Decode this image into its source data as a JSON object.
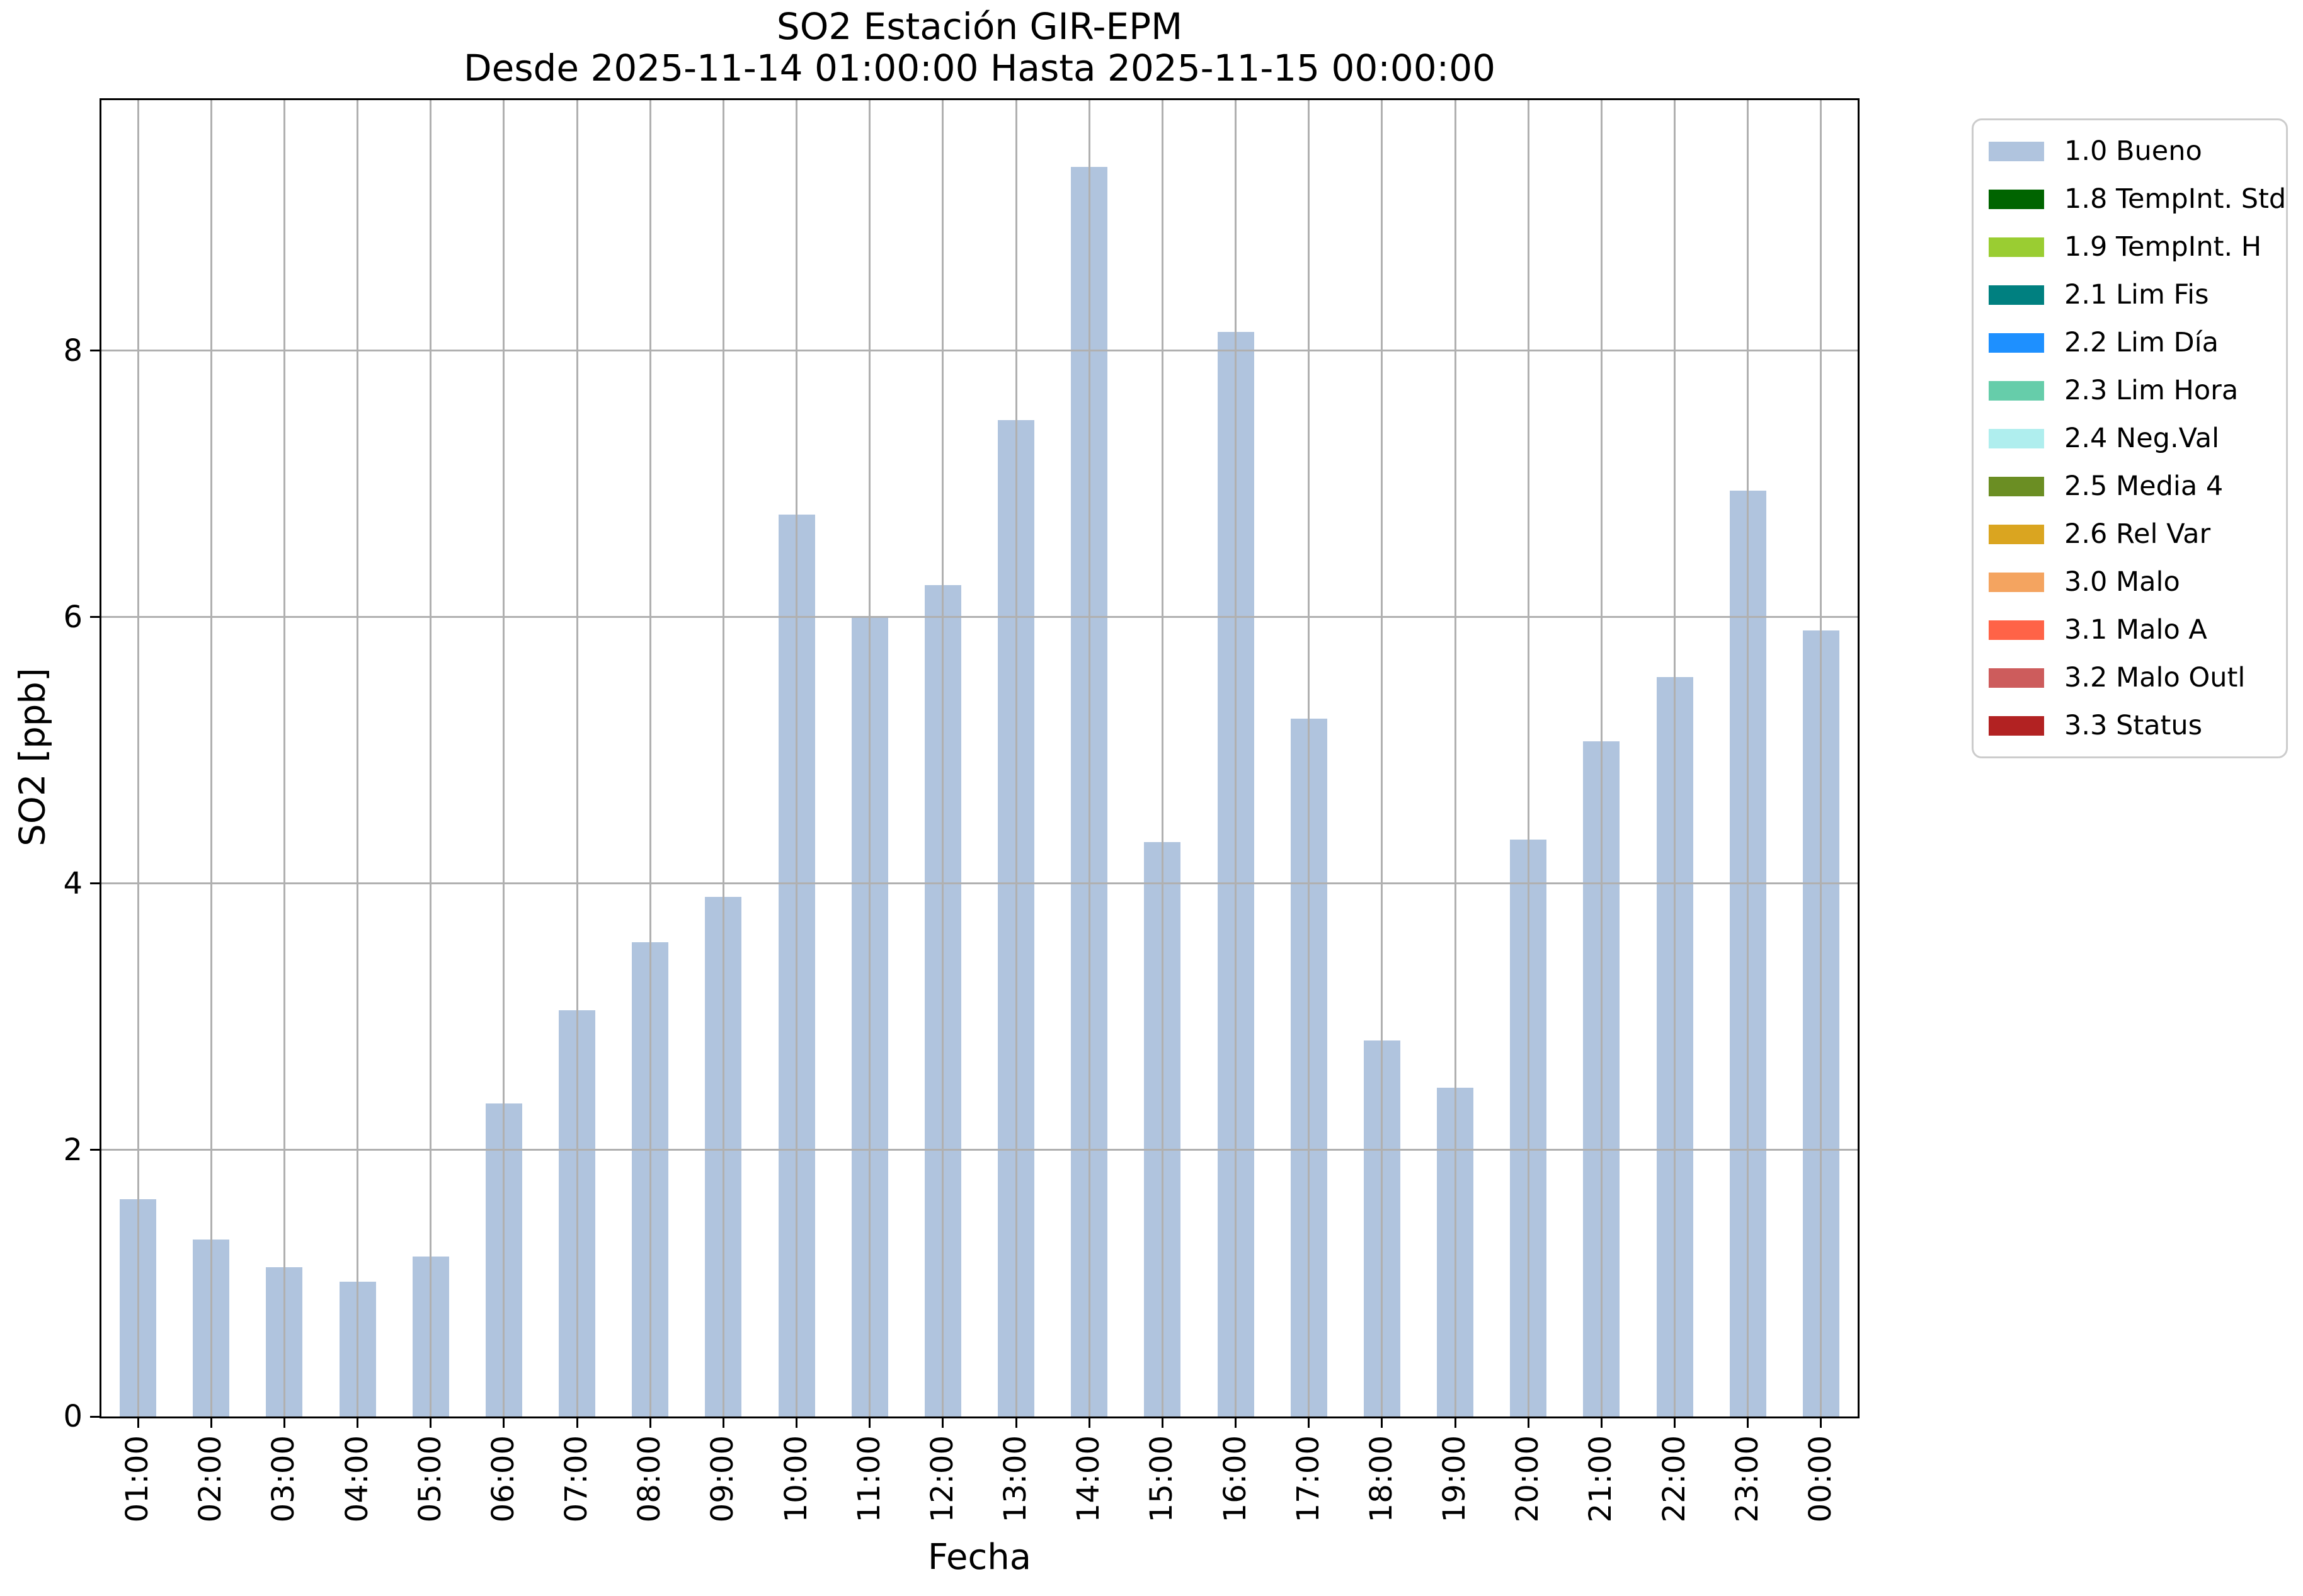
{
  "chart_data": {
    "type": "bar",
    "title": "SO2 Estación GIR-EPM",
    "subtitle": "Desde 2025-11-14 01:00:00 Hasta 2025-11-15 00:00:00",
    "xlabel": "Fecha",
    "ylabel": "SO2 [ppb]",
    "categories": [
      "01:00",
      "02:00",
      "03:00",
      "04:00",
      "05:00",
      "06:00",
      "07:00",
      "08:00",
      "09:00",
      "10:00",
      "11:00",
      "12:00",
      "13:00",
      "14:00",
      "15:00",
      "16:00",
      "17:00",
      "18:00",
      "19:00",
      "20:00",
      "21:00",
      "22:00",
      "23:00",
      "00:00"
    ],
    "values": [
      1.63,
      1.33,
      1.12,
      1.01,
      1.2,
      2.35,
      3.05,
      3.56,
      3.9,
      6.77,
      6.01,
      6.24,
      7.48,
      9.38,
      4.31,
      8.14,
      5.24,
      2.82,
      2.47,
      4.33,
      5.07,
      5.55,
      6.95,
      5.9
    ],
    "yticks": [
      0,
      2,
      4,
      6,
      8
    ],
    "ylim": [
      0,
      9.88
    ],
    "grid": true,
    "grid_over_bars": true,
    "bar_color": "#b0c4de",
    "legend_position": "outside top-right",
    "legend": [
      {
        "label": "1.0 Bueno",
        "color": "#b0c4de"
      },
      {
        "label": "1.8 TempInt. Std",
        "color": "#006400"
      },
      {
        "label": "1.9 TempInt. H",
        "color": "#9acd32"
      },
      {
        "label": "2.1 Lim Fis",
        "color": "#008080"
      },
      {
        "label": "2.2 Lim Día",
        "color": "#1e90ff"
      },
      {
        "label": "2.3 Lim Hora",
        "color": "#66cdaa"
      },
      {
        "label": "2.4 Neg.Val",
        "color": "#afeeee"
      },
      {
        "label": "2.5 Media 4",
        "color": "#6b8e23"
      },
      {
        "label": "2.6 Rel Var",
        "color": "#daa520"
      },
      {
        "label": "3.0 Malo",
        "color": "#f4a460"
      },
      {
        "label": "3.1 Malo A",
        "color": "#ff6347"
      },
      {
        "label": "3.2 Malo Outl",
        "color": "#cd5c5c"
      },
      {
        "label": "3.3 Status",
        "color": "#b22222"
      }
    ]
  },
  "colors": {
    "background": "#ffffff",
    "grid": "#b0b0b0",
    "axis": "#000000",
    "text": "#000000",
    "legend_border": "#cccccc"
  }
}
